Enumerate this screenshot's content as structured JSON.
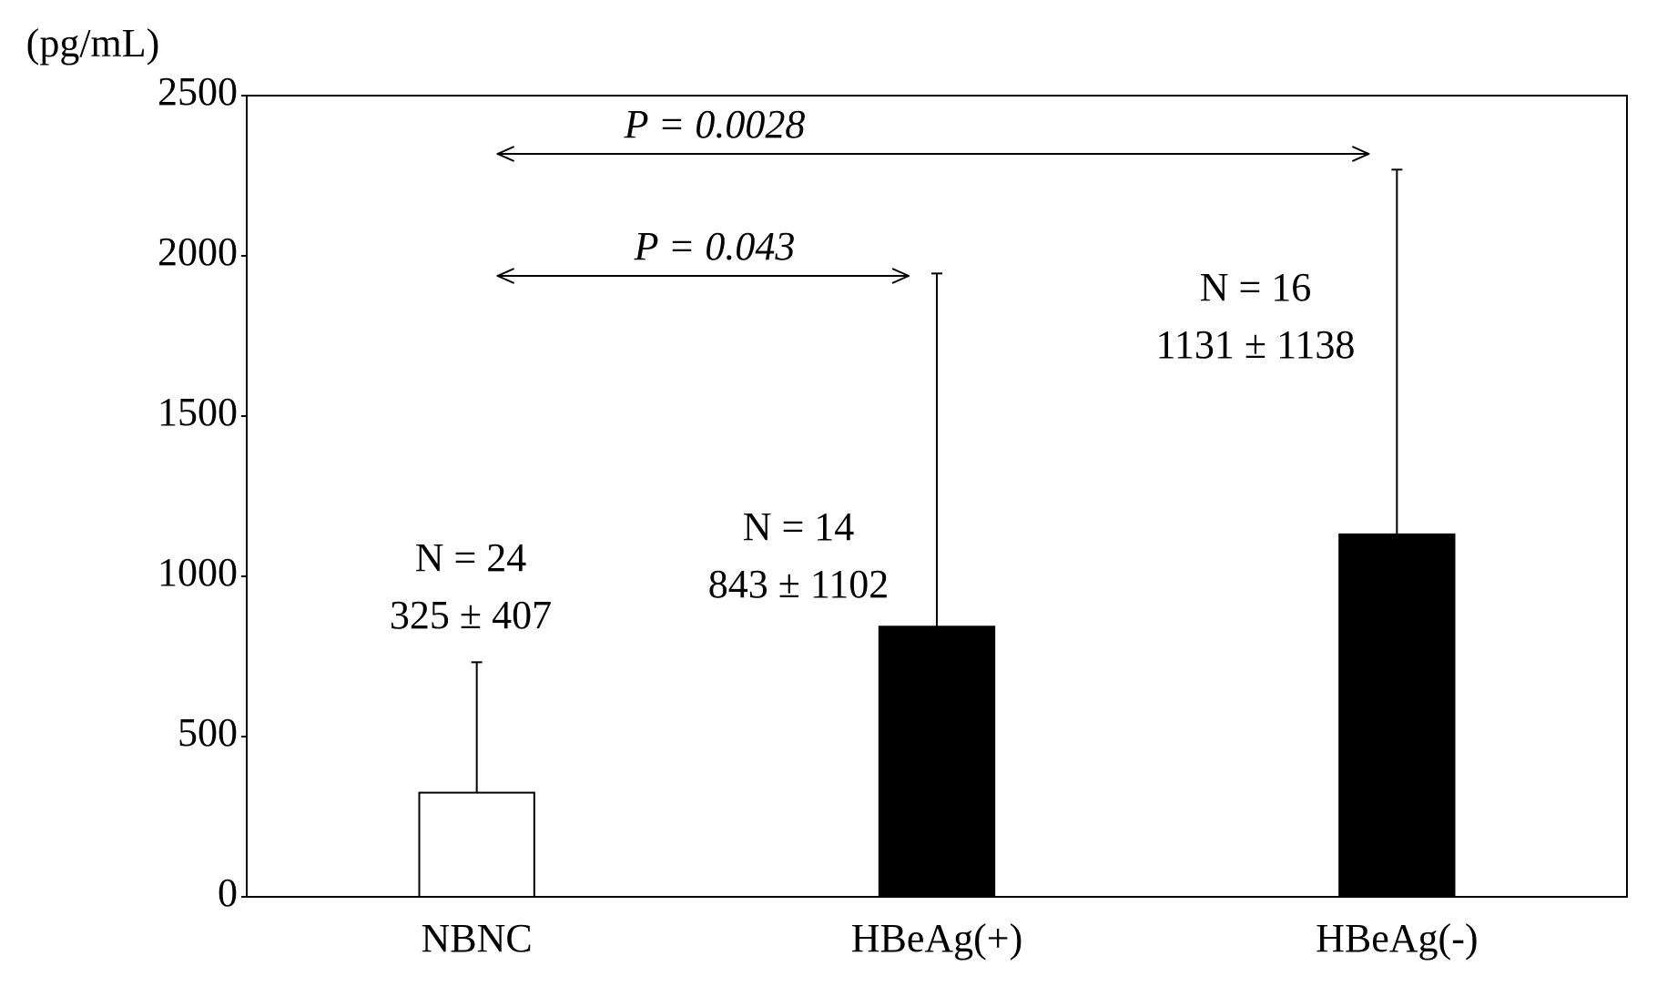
{
  "chart_data": {
    "type": "bar",
    "y_label": "(pg/mL)",
    "categories": [
      "NBNC",
      "HBeAg(+)",
      "HBeAg(-)"
    ],
    "values": [
      325,
      843,
      1131
    ],
    "errors": [
      407,
      1102,
      1138
    ],
    "value_labels": [
      "325 ± 407",
      "843 ± 1102",
      "1131 ± 1138"
    ],
    "n_labels": [
      "N = 24",
      "N = 14",
      "N = 16"
    ],
    "colors": [
      "#ffffff",
      "#000000",
      "#000000"
    ],
    "ylim": [
      0,
      2500
    ],
    "yticks": [
      0,
      500,
      1000,
      1500,
      2000,
      2500
    ],
    "annotations": [
      {
        "text": "P = 0.043",
        "from": 0,
        "to": 1
      },
      {
        "text": "P = 0.0028",
        "from": 0,
        "to": 2
      }
    ]
  }
}
